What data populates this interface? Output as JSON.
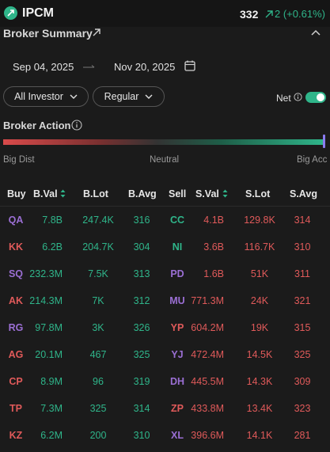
{
  "header": {
    "ticker": "IPCM",
    "price": "332",
    "change": "2 (+0.61%)"
  },
  "section": {
    "title": "Broker Summary"
  },
  "filters": {
    "start_date": "Sep 04, 2025",
    "end_date": "Nov 20, 2025",
    "investor": "All Investor",
    "market": "Regular",
    "net_label": "Net",
    "net_enabled": true
  },
  "broker_action": {
    "title": "Broker Action",
    "left_label": "Big Dist",
    "mid_label": "Neutral",
    "right_label": "Big Acc"
  },
  "table": {
    "headers": {
      "buy": "Buy",
      "bval": "B.Val",
      "blot": "B.Lot",
      "bavg": "B.Avg",
      "sell": "Sell",
      "sval": "S.Val",
      "slot": "S.Lot",
      "savg": "S.Avg"
    },
    "rows": [
      {
        "buy": "QA",
        "buy_color": "purple",
        "bval": "7.8B",
        "blot": "247.4K",
        "bavg": "316",
        "sell": "CC",
        "sell_color": "green",
        "sval": "4.1B",
        "slot": "129.8K",
        "savg": "314"
      },
      {
        "buy": "KK",
        "buy_color": "red",
        "bval": "6.2B",
        "blot": "204.7K",
        "bavg": "304",
        "sell": "NI",
        "sell_color": "green",
        "sval": "3.6B",
        "slot": "116.7K",
        "savg": "310"
      },
      {
        "buy": "SQ",
        "buy_color": "purple",
        "bval": "232.3M",
        "blot": "7.5K",
        "bavg": "313",
        "sell": "PD",
        "sell_color": "purple",
        "sval": "1.6B",
        "slot": "51K",
        "savg": "311"
      },
      {
        "buy": "AK",
        "buy_color": "red",
        "bval": "214.3M",
        "blot": "7K",
        "bavg": "312",
        "sell": "MU",
        "sell_color": "purple",
        "sval": "771.3M",
        "slot": "24K",
        "savg": "321"
      },
      {
        "buy": "RG",
        "buy_color": "purple",
        "bval": "97.8M",
        "blot": "3K",
        "bavg": "326",
        "sell": "YP",
        "sell_color": "red",
        "sval": "604.2M",
        "slot": "19K",
        "savg": "315"
      },
      {
        "buy": "AG",
        "buy_color": "red",
        "bval": "20.1M",
        "blot": "467",
        "bavg": "325",
        "sell": "YJ",
        "sell_color": "purple",
        "sval": "472.4M",
        "slot": "14.5K",
        "savg": "325"
      },
      {
        "buy": "CP",
        "buy_color": "red",
        "bval": "8.9M",
        "blot": "96",
        "bavg": "319",
        "sell": "DH",
        "sell_color": "purple",
        "sval": "445.5M",
        "slot": "14.3K",
        "savg": "309"
      },
      {
        "buy": "TP",
        "buy_color": "red",
        "bval": "7.3M",
        "blot": "325",
        "bavg": "314",
        "sell": "ZP",
        "sell_color": "red",
        "sval": "433.8M",
        "slot": "13.4K",
        "savg": "323"
      },
      {
        "buy": "KZ",
        "buy_color": "red",
        "bval": "6.2M",
        "blot": "200",
        "bavg": "310",
        "sell": "XL",
        "sell_color": "purple",
        "sval": "396.6M",
        "slot": "14.1K",
        "savg": "281"
      }
    ]
  }
}
